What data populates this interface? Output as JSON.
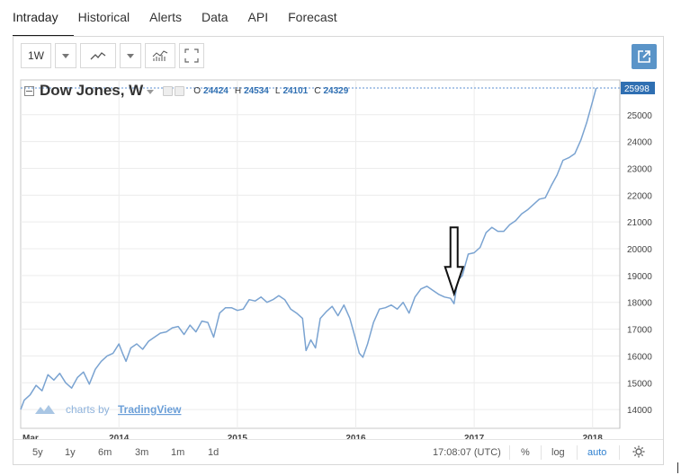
{
  "tabs": [
    "Intraday",
    "Historical",
    "Alerts",
    "Data",
    "API",
    "Forecast"
  ],
  "toolbar": {
    "interval": "1W",
    "chart_style_icon": "line-chart-icon",
    "indicators_icon": "indicators-icon",
    "fullscreen_icon": "fullscreen-icon",
    "popout_icon": "popout-icon"
  },
  "legend": {
    "symbol": "Dow Jones, W",
    "o_label": "O",
    "o": "24424",
    "h_label": "H",
    "h": "24534",
    "l_label": "L",
    "l": "24101",
    "c_label": "C",
    "c": "24329"
  },
  "watermark": {
    "prefix": "charts by",
    "brand": "TradingView"
  },
  "bottom": {
    "ranges": [
      "5y",
      "1y",
      "6m",
      "3m",
      "1m",
      "1d"
    ],
    "time": "17:08:07 (UTC)",
    "percent": "%",
    "log": "log",
    "auto": "auto"
  },
  "colors": {
    "line": "#7aa3d1",
    "accent": "#2f6fb2",
    "last_price_bg": "#2f6fb2",
    "popout_bg": "#5a94c8"
  },
  "chart_data": {
    "type": "line",
    "title": "Dow Jones, W",
    "xlabel": "",
    "ylabel": "",
    "x_tick_labels": [
      "Mar",
      "2014",
      "2015",
      "2016",
      "2017",
      "2018"
    ],
    "y_tick_labels": [
      "14000",
      "15000",
      "16000",
      "17000",
      "18000",
      "19000",
      "20000",
      "21000",
      "22000",
      "23000",
      "24000",
      "25000"
    ],
    "last_price": "25998",
    "ylim": [
      13300,
      26300
    ],
    "xlim": [
      2013.17,
      2018.23
    ],
    "grid": true,
    "series": [
      {
        "x": [
          2013.17,
          2013.2,
          2013.25,
          2013.3,
          2013.35,
          2013.4,
          2013.45,
          2013.5,
          2013.55,
          2013.6,
          2013.65,
          2013.7,
          2013.75,
          2013.8,
          2013.85,
          2013.9,
          2013.95,
          2014.0,
          2014.03,
          2014.06,
          2014.1,
          2014.15,
          2014.2,
          2014.25,
          2014.3,
          2014.35,
          2014.4,
          2014.45,
          2014.5,
          2014.55,
          2014.6,
          2014.65,
          2014.7,
          2014.75,
          2014.8,
          2014.85,
          2014.9,
          2014.95,
          2015.0,
          2015.05,
          2015.1,
          2015.15,
          2015.2,
          2015.25,
          2015.3,
          2015.35,
          2015.4,
          2015.45,
          2015.5,
          2015.55,
          2015.58,
          2015.62,
          2015.66,
          2015.7,
          2015.75,
          2015.8,
          2015.85,
          2015.9,
          2015.95,
          2016.0,
          2016.03,
          2016.06,
          2016.1,
          2016.15,
          2016.2,
          2016.25,
          2016.3,
          2016.35,
          2016.4,
          2016.45,
          2016.5,
          2016.55,
          2016.6,
          2016.65,
          2016.7,
          2016.75,
          2016.8,
          2016.83,
          2016.86,
          2016.9,
          2016.95,
          2017.0,
          2017.05,
          2017.1,
          2017.15,
          2017.2,
          2017.25,
          2017.3,
          2017.35,
          2017.4,
          2017.45,
          2017.5,
          2017.55,
          2017.6,
          2017.65,
          2017.7,
          2017.75,
          2017.8,
          2017.85,
          2017.9,
          2017.95,
          2018.0,
          2018.03
        ],
        "y": [
          14000,
          14350,
          14550,
          14900,
          14700,
          15300,
          15100,
          15350,
          15000,
          14800,
          15200,
          15400,
          14950,
          15500,
          15800,
          16000,
          16100,
          16450,
          16100,
          15800,
          16300,
          16450,
          16250,
          16550,
          16700,
          16850,
          16900,
          17050,
          17100,
          16800,
          17150,
          16900,
          17300,
          17250,
          16700,
          17600,
          17800,
          17800,
          17700,
          17750,
          18100,
          18050,
          18200,
          18000,
          18100,
          18250,
          18100,
          17750,
          17600,
          17400,
          16200,
          16600,
          16300,
          17400,
          17650,
          17850,
          17500,
          17900,
          17400,
          16600,
          16100,
          15950,
          16450,
          17250,
          17750,
          17800,
          17900,
          17750,
          18000,
          17600,
          18200,
          18500,
          18600,
          18450,
          18300,
          18200,
          18150,
          17950,
          18800,
          19000,
          19800,
          19850,
          20050,
          20600,
          20800,
          20650,
          20650,
          20900,
          21050,
          21300,
          21450,
          21650,
          21850,
          21900,
          22350,
          22750,
          23300,
          23400,
          23550,
          24050,
          24700,
          25500,
          25998
        ]
      }
    ]
  }
}
